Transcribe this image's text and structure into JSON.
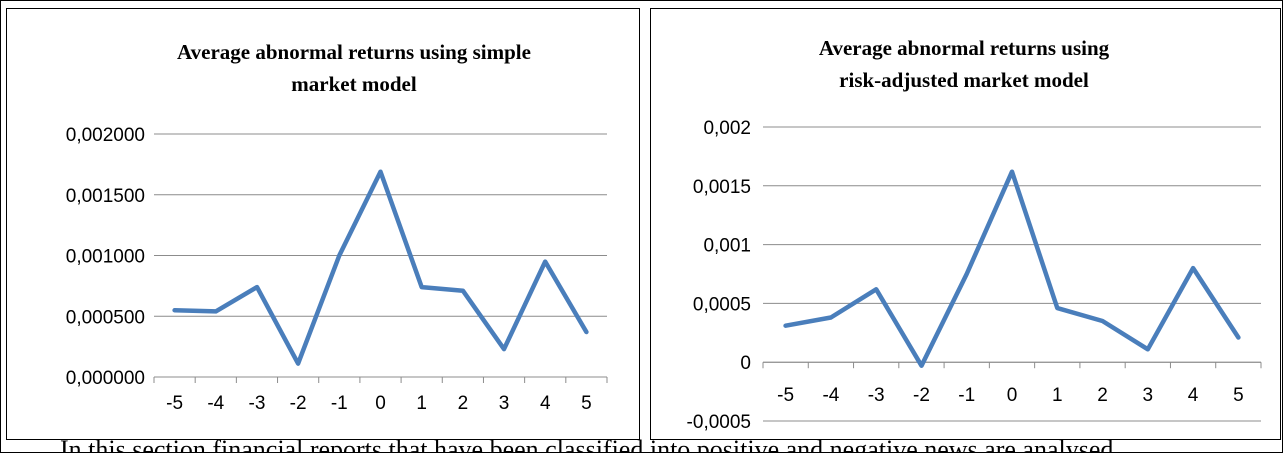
{
  "chart_data": [
    {
      "type": "line",
      "title_lines": [
        "Average abnormal returns using simple",
        "market model"
      ],
      "categories": [
        "-5",
        "-4",
        "-3",
        "-2",
        "-1",
        "0",
        "1",
        "2",
        "3",
        "4",
        "5"
      ],
      "series": [
        {
          "values": [
            0.00055,
            0.00054,
            0.00074,
            0.00011,
            0.001,
            0.00169,
            0.00074,
            0.00071,
            0.00023,
            0.00095,
            0.00037
          ]
        }
      ],
      "ylim": [
        0,
        0.002
      ],
      "yticks": [
        0,
        0.0005,
        0.001,
        0.0015,
        0.002
      ],
      "ytick_labels": [
        "0,000000",
        "0,000500",
        "0,001000",
        "0,001500",
        "0,002000"
      ],
      "grid": true,
      "line_color": "#4a7ebb"
    },
    {
      "type": "line",
      "title_lines": [
        "Average abnormal returns using",
        "risk-adjusted market model"
      ],
      "categories": [
        "-5",
        "-4",
        "-3",
        "-2",
        "-1",
        "0",
        "1",
        "2",
        "3",
        "4",
        "5"
      ],
      "series": [
        {
          "values": [
            0.00031,
            0.00038,
            0.00062,
            -3e-05,
            0.00075,
            0.00162,
            0.00046,
            0.00035,
            0.00011,
            0.0008,
            0.00021
          ]
        }
      ],
      "ylim": [
        -0.0005,
        0.002
      ],
      "yticks": [
        -0.0005,
        0,
        0.0005,
        0.001,
        0.0015,
        0.002
      ],
      "ytick_labels": [
        "-0,0005",
        "0",
        "0,0005",
        "0,001",
        "0,0015",
        "0,002"
      ],
      "grid": true,
      "line_color": "#4a7ebb"
    }
  ],
  "body_text": "In this section financial reports that have been classified into positive and negative news are analysed"
}
